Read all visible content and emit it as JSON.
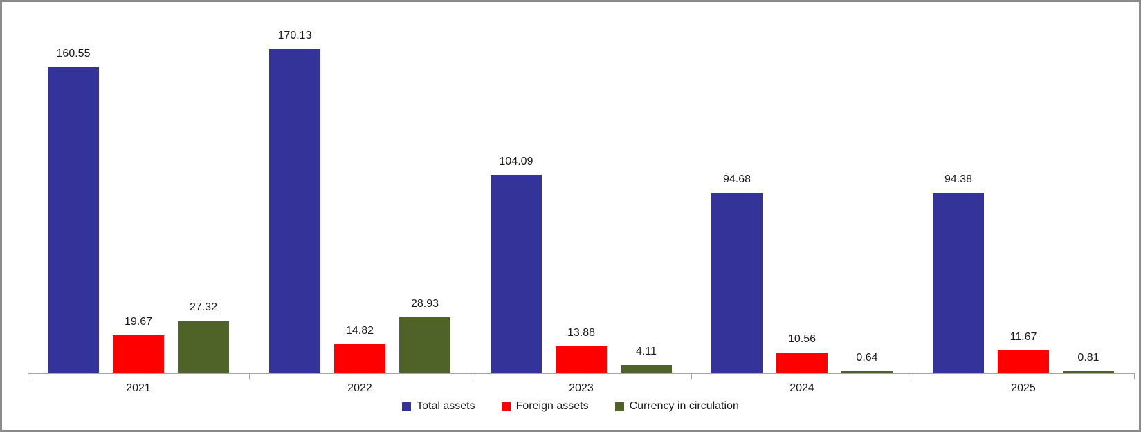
{
  "frame": {
    "background": "#ffffff",
    "border_color": "#8a8a8a",
    "axis_color": "#a6a6a6",
    "text_color": "#1a1a1a"
  },
  "chart_data": {
    "type": "bar",
    "title": "",
    "xlabel": "",
    "ylabel": "",
    "categories": [
      "2021",
      "2022",
      "2023",
      "2024",
      "2025"
    ],
    "series": [
      {
        "name": "Total assets",
        "color": "#333399",
        "values": [
          160.55,
          170.13,
          104.09,
          94.68,
          94.38
        ]
      },
      {
        "name": "Foreign assets",
        "color": "#FF0000",
        "values": [
          19.67,
          14.82,
          13.88,
          10.56,
          11.67
        ]
      },
      {
        "name": "Currency in circulation",
        "color": "#4F6228",
        "values": [
          27.32,
          28.93,
          4.11,
          0.64,
          0.81
        ]
      }
    ],
    "ylim": [
      0,
      180
    ],
    "grid": false,
    "legend_position": "bottom",
    "data_labels": true
  }
}
